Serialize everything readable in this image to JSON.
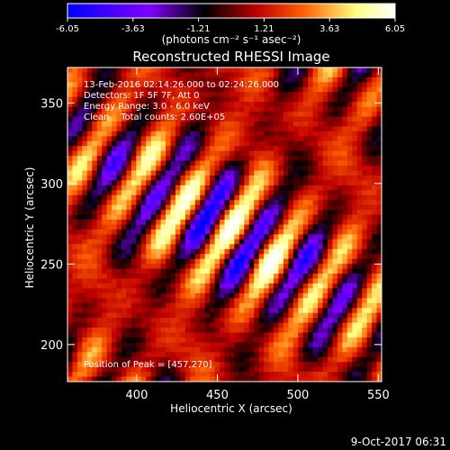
{
  "chart_data": {
    "type": "heatmap",
    "title": "Reconstructed RHESSI Image",
    "xlabel": "Heliocentric X (arcsec)",
    "ylabel": "Heliocentric Y (arcsec)",
    "xlim": [
      357,
      552
    ],
    "ylim": [
      177,
      372
    ],
    "xticks": [
      400,
      450,
      500,
      550
    ],
    "yticks": [
      200,
      250,
      300,
      350
    ],
    "colorbar": {
      "min": -6.05,
      "max": 6.05,
      "ticks": [
        "-6.05",
        "-3.63",
        "-1.21",
        "1.21",
        "3.63",
        "6.05"
      ],
      "units": "(photons cm⁻² s⁻¹ asec⁻²)",
      "colormap": [
        "#0000ff",
        "#7f00ff",
        "#000000",
        "#c00000",
        "#ff6000",
        "#ffff80",
        "#ffffff"
      ]
    },
    "annotations": {
      "time_range": "13-Feb-2016 02:14:26.000 to 02:24:26.000",
      "detectors": "Detectors: 1F 5F 7F, Att 0",
      "energy_range": "Energy Range: 3.0 - 6.0 keV",
      "method_counts": "Clean    Total counts: 2.60E+05",
      "peak_position": "Position of Peak = [457,270]"
    },
    "peak": {
      "x": 457,
      "y": 270
    },
    "grid": false
  },
  "footer": {
    "date": "9-Oct-2017 06:31"
  }
}
